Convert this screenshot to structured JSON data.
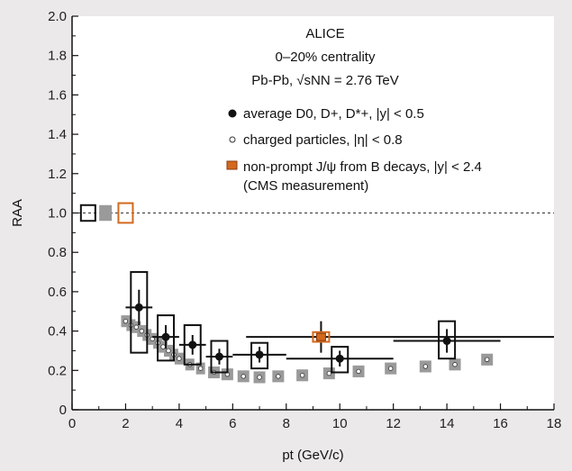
{
  "chart_data": {
    "type": "scatter",
    "title": "ALICE",
    "annotations": [
      "0–20% centrality",
      "Pb-Pb, √sNN = 2.76 TeV"
    ],
    "xlabel": "pt (GeV/c)",
    "ylabel": "RAA",
    "xlim": [
      0,
      18
    ],
    "ylim": [
      0,
      2.0
    ],
    "x_ticks": [
      "0",
      "2",
      "4",
      "6",
      "8",
      "10",
      "12",
      "14",
      "16",
      "18"
    ],
    "y_ticks": [
      "0",
      "0.2",
      "0.4",
      "0.6",
      "0.8",
      "1.0",
      "1.2",
      "1.4",
      "1.6",
      "1.8",
      "2.0"
    ],
    "reference_line": 1.0,
    "grid": false,
    "legend_position": "top-right",
    "colors": {
      "d_mesons": "#111111",
      "charged": "#9a9a9a",
      "jpsi": "#d2691e"
    },
    "series": [
      {
        "name": "average D0, D+, D*+, |y| < 0.5",
        "marker": "filled-circle",
        "points": [
          {
            "x": 2.5,
            "y": 0.52,
            "xlo": 2,
            "xhi": 3,
            "stat": 0.09,
            "syst_lo": 0.29,
            "syst_hi": 0.7
          },
          {
            "x": 3.5,
            "y": 0.37,
            "xlo": 3,
            "xhi": 4,
            "stat": 0.06,
            "syst_lo": 0.25,
            "syst_hi": 0.48
          },
          {
            "x": 4.5,
            "y": 0.33,
            "xlo": 4,
            "xhi": 5,
            "stat": 0.05,
            "syst_lo": 0.23,
            "syst_hi": 0.43
          },
          {
            "x": 5.5,
            "y": 0.27,
            "xlo": 5,
            "xhi": 6,
            "stat": 0.04,
            "syst_lo": 0.19,
            "syst_hi": 0.35
          },
          {
            "x": 7,
            "y": 0.28,
            "xlo": 6,
            "xhi": 8,
            "stat": 0.04,
            "syst_lo": 0.21,
            "syst_hi": 0.34
          },
          {
            "x": 10,
            "y": 0.26,
            "xlo": 8,
            "xhi": 12,
            "stat": 0.04,
            "syst_lo": 0.19,
            "syst_hi": 0.32
          },
          {
            "x": 14,
            "y": 0.35,
            "xlo": 12,
            "xhi": 16,
            "stat": 0.06,
            "syst_lo": 0.26,
            "syst_hi": 0.45
          }
        ],
        "norm_box": {
          "x": 0.6,
          "lo": 0.96,
          "hi": 1.04
        }
      },
      {
        "name": "charged particles, |η| < 0.8",
        "marker": "open-circle",
        "points": [
          {
            "x": 2.0,
            "y": 0.45
          },
          {
            "x": 2.2,
            "y": 0.43
          },
          {
            "x": 2.4,
            "y": 0.42
          },
          {
            "x": 2.6,
            "y": 0.4
          },
          {
            "x": 2.8,
            "y": 0.38
          },
          {
            "x": 3.0,
            "y": 0.36
          },
          {
            "x": 3.2,
            "y": 0.34
          },
          {
            "x": 3.4,
            "y": 0.32
          },
          {
            "x": 3.6,
            "y": 0.3
          },
          {
            "x": 3.8,
            "y": 0.28
          },
          {
            "x": 4.0,
            "y": 0.26
          },
          {
            "x": 4.4,
            "y": 0.23
          },
          {
            "x": 4.8,
            "y": 0.21
          },
          {
            "x": 5.3,
            "y": 0.19
          },
          {
            "x": 5.8,
            "y": 0.18
          },
          {
            "x": 6.4,
            "y": 0.17
          },
          {
            "x": 7.0,
            "y": 0.165
          },
          {
            "x": 7.7,
            "y": 0.17
          },
          {
            "x": 8.6,
            "y": 0.175
          },
          {
            "x": 9.6,
            "y": 0.185
          },
          {
            "x": 10.7,
            "y": 0.195
          },
          {
            "x": 11.9,
            "y": 0.21
          },
          {
            "x": 13.2,
            "y": 0.22
          },
          {
            "x": 14.3,
            "y": 0.23
          },
          {
            "x": 15.5,
            "y": 0.255
          }
        ],
        "syst_half_height": 0.03,
        "norm_box": {
          "x": 1.25,
          "lo": 0.96,
          "hi": 1.04
        }
      },
      {
        "name": "non-prompt J/ψ from B decays, |y| < 2.4",
        "name_line2": "(CMS measurement)",
        "marker": "filled-square",
        "points": [
          {
            "x": 9.3,
            "y": 0.37,
            "xlo": 6.5,
            "xhi": 18,
            "stat": 0.08,
            "syst_lo": 0.35,
            "syst_hi": 0.39
          }
        ],
        "norm_box": {
          "x": 2.0,
          "lo": 0.95,
          "hi": 1.05
        }
      }
    ]
  }
}
